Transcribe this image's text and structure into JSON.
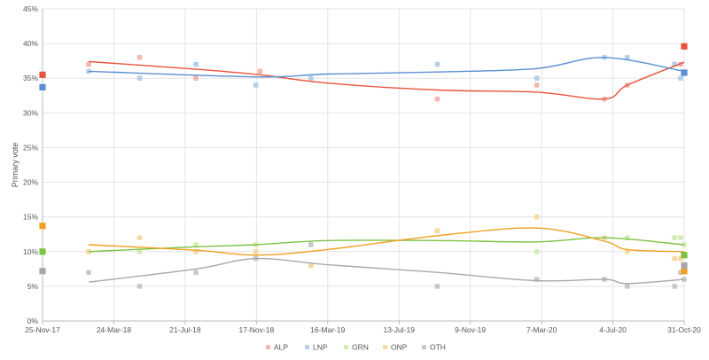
{
  "chart_data": {
    "type": "scatter",
    "ylabel": "Primary vote",
    "xlabel": "",
    "ylim": [
      0,
      45
    ],
    "y_ticks": [
      {
        "value": 0,
        "label": "0%"
      },
      {
        "value": 5,
        "label": "5%"
      },
      {
        "value": 10,
        "label": "10%"
      },
      {
        "value": 15,
        "label": "15%"
      },
      {
        "value": 20,
        "label": "20%"
      },
      {
        "value": 25,
        "label": "25%"
      },
      {
        "value": 30,
        "label": "30%"
      },
      {
        "value": 35,
        "label": "35%"
      },
      {
        "value": 40,
        "label": "40%"
      },
      {
        "value": 45,
        "label": "45%"
      }
    ],
    "xlim": [
      "2017-11-25",
      "2020-10-31"
    ],
    "x_ticks": [
      "25-Nov-17",
      "24-Mar-18",
      "21-Jul-18",
      "17-Nov-18",
      "16-Mar-19",
      "13-Jul-19",
      "9-Nov-19",
      "7-Mar-20",
      "4-Jul-20",
      "31-Oct-20"
    ],
    "grid": true,
    "legend": "bottom-center",
    "series": [
      {
        "name": "ALP",
        "color": "#e8543a",
        "point_color": "#f4b6b3",
        "points": [
          [
            "2018-02-10",
            37
          ],
          [
            "2018-05-06",
            38
          ],
          [
            "2018-08-08",
            35
          ],
          [
            "2018-11-23",
            36
          ],
          [
            "2019-09-15",
            32
          ],
          [
            "2020-02-28",
            34
          ],
          [
            "2020-06-20",
            32
          ],
          [
            "2020-07-28",
            34
          ],
          [
            "2020-10-15",
            37
          ],
          [
            "2020-10-25",
            37
          ]
        ],
        "election": {
          "date": "2017-11-25",
          "value": 35.5
        },
        "latest": {
          "date": "2020-10-31",
          "value": 39.6
        },
        "trend": [
          [
            "2018-02-10",
            37.4
          ],
          [
            "2018-08-08",
            36.3
          ],
          [
            "2018-11-23",
            35.5
          ],
          [
            "2019-03-16",
            34.3
          ],
          [
            "2019-09-15",
            33.3
          ],
          [
            "2020-02-28",
            33
          ],
          [
            "2020-06-20",
            32
          ],
          [
            "2020-07-28",
            34
          ],
          [
            "2020-10-31",
            37.3
          ]
        ]
      },
      {
        "name": "LNP",
        "color": "#5b8fd1",
        "point_color": "#b5cfe8",
        "points": [
          [
            "2018-02-10",
            36
          ],
          [
            "2018-05-06",
            35
          ],
          [
            "2018-08-08",
            37
          ],
          [
            "2018-11-16",
            34
          ],
          [
            "2019-02-16",
            35
          ],
          [
            "2019-09-15",
            37
          ],
          [
            "2020-02-28",
            35
          ],
          [
            "2020-06-20",
            38
          ],
          [
            "2020-07-28",
            38
          ],
          [
            "2020-10-15",
            37
          ],
          [
            "2020-10-25",
            35
          ]
        ],
        "election": {
          "date": "2017-11-25",
          "value": 33.7
        },
        "latest": {
          "date": "2020-10-31",
          "value": 35.8
        },
        "trend": [
          [
            "2018-02-10",
            36
          ],
          [
            "2018-11-16",
            35.2
          ],
          [
            "2019-03-16",
            35.6
          ],
          [
            "2019-09-15",
            35.9
          ],
          [
            "2020-02-28",
            36.4
          ],
          [
            "2020-06-20",
            38
          ],
          [
            "2020-10-31",
            36
          ]
        ]
      },
      {
        "name": "GRN",
        "color": "#7cc242",
        "point_color": "#d3ecb5",
        "points": [
          [
            "2018-02-10",
            10
          ],
          [
            "2018-05-06",
            10
          ],
          [
            "2018-08-08",
            11
          ],
          [
            "2018-11-16",
            11
          ],
          [
            "2019-02-16",
            11
          ],
          [
            "2019-09-15",
            13
          ],
          [
            "2020-02-28",
            10
          ],
          [
            "2020-06-20",
            12
          ],
          [
            "2020-07-28",
            12
          ],
          [
            "2020-10-15",
            12
          ],
          [
            "2020-10-25",
            12
          ],
          [
            "2020-10-31",
            11
          ]
        ],
        "election": {
          "date": "2017-11-25",
          "value": 10.0
        },
        "latest": {
          "date": "2020-10-31",
          "value": 9.5
        },
        "trend": [
          [
            "2018-02-10",
            10
          ],
          [
            "2018-08-08",
            10.7
          ],
          [
            "2018-11-16",
            11
          ],
          [
            "2019-03-16",
            11.6
          ],
          [
            "2019-09-15",
            11.6
          ],
          [
            "2020-02-28",
            11.4
          ],
          [
            "2020-06-20",
            12
          ],
          [
            "2020-10-31",
            11
          ]
        ]
      },
      {
        "name": "ONP",
        "color": "#f0a020",
        "point_color": "#f7d9a0",
        "points": [
          [
            "2018-02-10",
            10
          ],
          [
            "2018-05-06",
            12
          ],
          [
            "2018-08-08",
            10
          ],
          [
            "2018-11-16",
            10
          ],
          [
            "2019-02-16",
            8
          ],
          [
            "2019-09-15",
            13
          ],
          [
            "2020-02-28",
            15
          ],
          [
            "2020-06-20",
            12
          ],
          [
            "2020-07-28",
            10
          ],
          [
            "2020-10-15",
            9
          ],
          [
            "2020-10-25",
            9
          ]
        ],
        "election": {
          "date": "2017-11-25",
          "value": 13.7
        },
        "latest": {
          "date": "2020-10-31",
          "value": 7.2
        },
        "trend": [
          [
            "2018-02-10",
            11
          ],
          [
            "2018-08-08",
            10.2
          ],
          [
            "2018-11-16",
            9.5
          ],
          [
            "2019-03-16",
            10.3
          ],
          [
            "2019-09-15",
            12.3
          ],
          [
            "2020-02-28",
            13.4
          ],
          [
            "2020-06-20",
            11.5
          ],
          [
            "2020-07-28",
            10.3
          ],
          [
            "2020-10-31",
            10
          ]
        ]
      },
      {
        "name": "OTH",
        "color": "#a8a8a8",
        "point_color": "#c8c8c8",
        "points": [
          [
            "2018-02-10",
            7
          ],
          [
            "2018-05-06",
            5
          ],
          [
            "2018-08-08",
            7
          ],
          [
            "2018-11-16",
            9
          ],
          [
            "2019-02-16",
            11
          ],
          [
            "2019-09-15",
            5
          ],
          [
            "2020-02-28",
            6
          ],
          [
            "2020-06-20",
            6
          ],
          [
            "2020-07-28",
            5
          ],
          [
            "2020-10-15",
            5
          ],
          [
            "2020-10-25",
            7
          ],
          [
            "2020-10-31",
            6
          ]
        ],
        "election": {
          "date": "2017-11-25",
          "value": 7.2
        },
        "latest": {
          "date": "2020-10-31",
          "value": 8.0
        },
        "trend": [
          [
            "2018-02-10",
            5.6
          ],
          [
            "2018-08-08",
            7.5
          ],
          [
            "2018-11-16",
            9
          ],
          [
            "2019-03-16",
            8.1
          ],
          [
            "2019-09-15",
            7
          ],
          [
            "2020-02-28",
            5.8
          ],
          [
            "2020-06-20",
            6
          ],
          [
            "2020-07-28",
            5.4
          ],
          [
            "2020-10-31",
            6
          ]
        ]
      }
    ]
  }
}
